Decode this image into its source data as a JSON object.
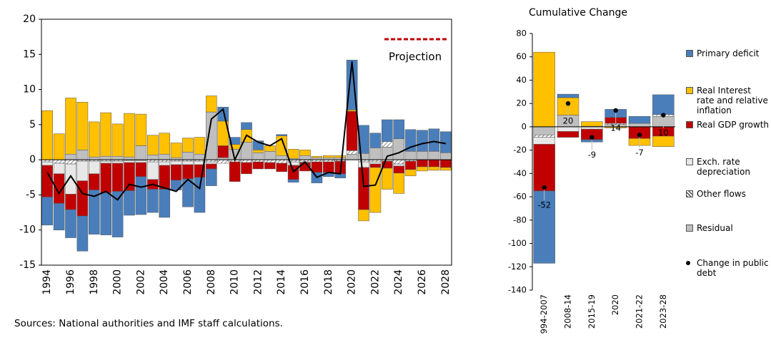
{
  "chart_data": [
    {
      "type": "bar",
      "categories": [
        "1994",
        null,
        "1996",
        null,
        "1998",
        null,
        "2000",
        null,
        "2002",
        null,
        "2004",
        null,
        "2006",
        null,
        "2008",
        null,
        "2010",
        null,
        "2012",
        null,
        "2014",
        null,
        "2016",
        null,
        "2018",
        null,
        "2020",
        null,
        "2022",
        null,
        "2024",
        null,
        "2026",
        null,
        "2028"
      ],
      "series": [
        {
          "color": "#4a7ebb",
          "values": [
            -4,
            -3.8,
            -4,
            -5,
            -6.3,
            -6,
            -6.5,
            -3.5,
            -5.4,
            -3.3,
            -4,
            -1.4,
            -4,
            -5,
            -2.4,
            2,
            1,
            1,
            1.3,
            0,
            0.2,
            -0.4,
            0,
            -1.5,
            -0.6,
            -0.6,
            7.1,
            4,
            2.1,
            3.1,
            2.7,
            3.1,
            3,
            3.2,
            3
          ]
        },
        {
          "color": "#ffc000",
          "values": [
            7,
            3.7,
            8,
            6.8,
            5,
            6.2,
            4.6,
            6.2,
            4.5,
            2.8,
            3,
            2.1,
            2,
            2.4,
            2.3,
            3.5,
            0.7,
            1.8,
            0.4,
            0.8,
            2.8,
            1.3,
            0.8,
            0.2,
            0.3,
            0.3,
            0.2,
            -1.6,
            -6.4,
            -3,
            -2.9,
            -0.9,
            -0.6,
            -0.5,
            -0.4
          ]
        },
        {
          "color": "#c00000",
          "values": [
            -4.5,
            -4.2,
            -2.2,
            -5,
            -2.3,
            -4.2,
            -4,
            -4,
            -2,
            -1.4,
            -3.4,
            -2.2,
            -2,
            -1.8,
            -0.7,
            1.7,
            -2.8,
            -1.6,
            -1,
            -0.9,
            -1.2,
            -2,
            -1.2,
            -1.5,
            -1.5,
            -1.8,
            5.6,
            -6,
            -0.5,
            -1,
            -1,
            -1.2,
            -1,
            -1,
            -1.1
          ]
        },
        {
          "color": "#e8e8e8",
          "values": [
            -0.5,
            -1.5,
            -4.3,
            -2.8,
            -1.8,
            -0.3,
            -0.3,
            -0.3,
            -0.3,
            -2.5,
            -0.5,
            -0.5,
            -0.5,
            -0.5,
            -0.3,
            0,
            0,
            0,
            0,
            0,
            0,
            -0.5,
            -0.1,
            0,
            0,
            0,
            0,
            -0.8,
            -0.3,
            -0.2,
            -0.3,
            0,
            0,
            0,
            0
          ]
        },
        {
          "color": "#ffffff",
          "hatch": true,
          "values": [
            -0.3,
            -0.5,
            -0.6,
            -0.2,
            -0.2,
            -0.2,
            -0.2,
            -0.1,
            -0.1,
            -0.3,
            -0.3,
            -0.2,
            -0.2,
            -0.2,
            -0.3,
            -0.5,
            -0.3,
            -0.4,
            -0.3,
            -0.4,
            -0.5,
            -0.3,
            -0.3,
            -0.3,
            -0.3,
            -0.2,
            0.5,
            -0.3,
            -0.3,
            0.8,
            -0.6,
            -0.2,
            0,
            0,
            0
          ]
        },
        {
          "color": "#bfbfbf",
          "values": [
            0,
            0,
            0.8,
            1.4,
            0.4,
            0.5,
            0.5,
            0.4,
            2,
            0.7,
            0.8,
            0.3,
            1.1,
            0.8,
            6.8,
            0.3,
            1.5,
            2.5,
            1,
            1.2,
            0.6,
            0.2,
            0.6,
            0.3,
            0.3,
            0.3,
            0.8,
            0.9,
            1.7,
            1.8,
            3,
            1.2,
            1.2,
            1.2,
            1
          ]
        },
        {
          "type": "line",
          "color": "#000000",
          "values": [
            -1.8,
            -4.8,
            -2.3,
            -4.8,
            -5.2,
            -4.5,
            -5.7,
            -3.5,
            -3.9,
            -3.5,
            -4,
            -4.5,
            -2.8,
            -4.1,
            5.8,
            7.2,
            0,
            3.5,
            2.5,
            2,
            3,
            -1.7,
            -0.3,
            -2.5,
            -1.8,
            -2,
            14,
            -3.8,
            -3.6,
            0.5,
            1,
            1.8,
            2.3,
            2.6,
            2.3
          ]
        }
      ],
      "ylim": [
        -15,
        20
      ],
      "yticks": [
        -15,
        -10,
        -5,
        0,
        5,
        10,
        15,
        20
      ],
      "annotation": "Projection",
      "note": "Sources: National authorities and IMF staff calculations."
    },
    {
      "type": "bar",
      "title": "Cumulative Change",
      "categories": [
        "994-2007",
        "2008-14",
        "2015-19",
        "2020",
        "2021-22",
        "2023-28"
      ],
      "series": [
        {
          "name": "Primary deficit",
          "color": "#4a7ebb",
          "values": [
            -62,
            3,
            -2,
            7,
            6,
            17
          ]
        },
        {
          "name": "Real Interest rate and relative inflation",
          "color": "#ffc000",
          "values": [
            64,
            15,
            4,
            -1,
            -6,
            -9
          ]
        },
        {
          "name": "Real GDP growth",
          "color": "#c00000",
          "values": [
            -40,
            -5,
            -9,
            5,
            -10,
            -8
          ]
        },
        {
          "name": "Exch. rate depreciation",
          "color": "#e8e8e8",
          "values": [
            -6,
            -4,
            -2,
            0,
            0,
            0
          ]
        },
        {
          "name": "Other flows",
          "color": "#ffffff",
          "hatch": true,
          "values": [
            -2,
            0,
            0,
            1,
            0,
            1.5
          ]
        },
        {
          "name": "Residual",
          "color": "#bfbfbf",
          "values": [
            -7,
            10,
            0.5,
            2,
            3,
            9
          ]
        },
        {
          "name": "Change in public debt",
          "type": "scatter",
          "color": "#000000",
          "values": [
            -52,
            20,
            -9,
            14,
            -7,
            10
          ]
        }
      ],
      "ylim": [
        -140,
        80
      ],
      "yticks": [
        -140,
        -120,
        -100,
        -80,
        -60,
        -40,
        -20,
        0,
        20,
        40,
        60,
        80
      ]
    }
  ]
}
